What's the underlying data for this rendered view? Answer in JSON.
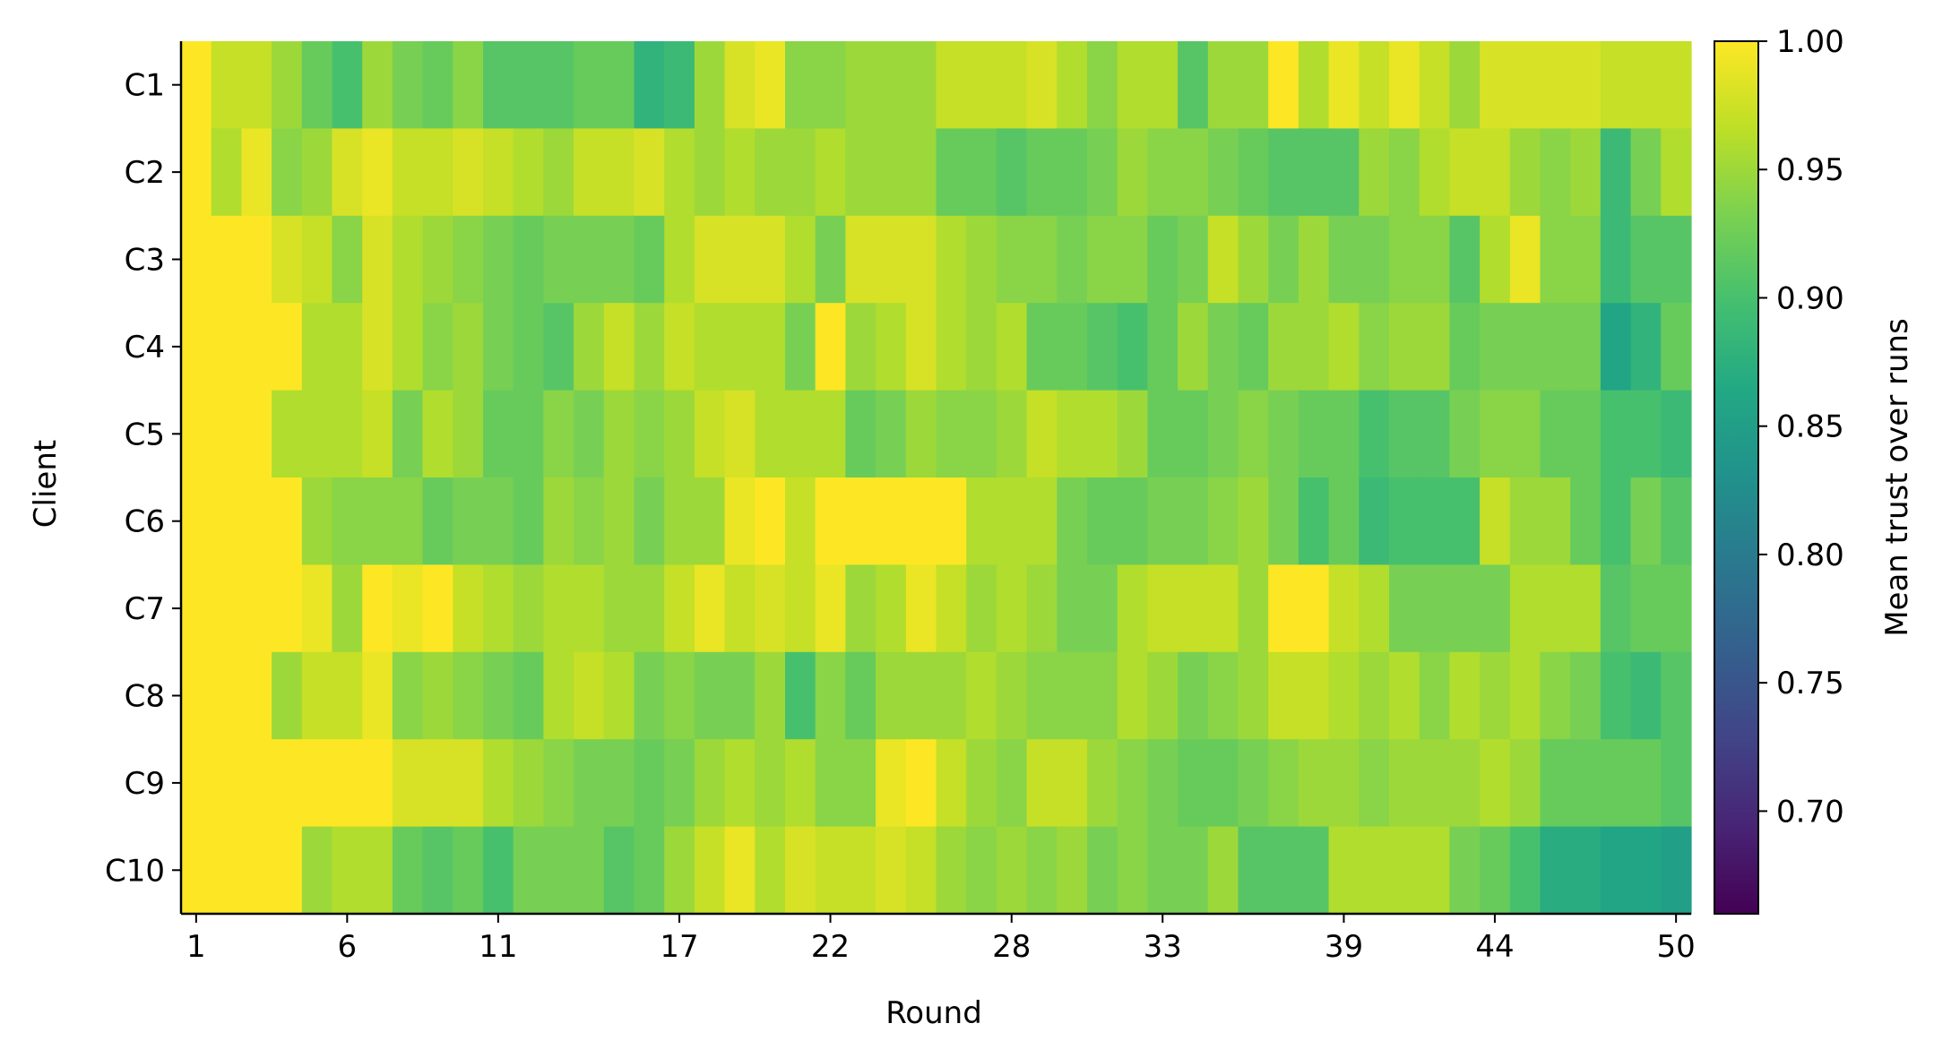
{
  "chart_data": {
    "type": "heatmap",
    "title": "",
    "xlabel": "Round",
    "ylabel": "Client",
    "colorbar_label": "Mean trust over runs",
    "colormap": "viridis",
    "vmin": 0.66,
    "vmax": 1.0,
    "x_tick_labels": [
      "1",
      "6",
      "11",
      "17",
      "22",
      "28",
      "33",
      "39",
      "44",
      "50"
    ],
    "x_tick_rounds": [
      1,
      6,
      11,
      17,
      22,
      28,
      33,
      39,
      44,
      50
    ],
    "rows": [
      "C1",
      "C2",
      "C3",
      "C4",
      "C5",
      "C6",
      "C7",
      "C8",
      "C9",
      "C10"
    ],
    "colorbar_ticks": [
      "0.70",
      "0.75",
      "0.80",
      "0.85",
      "0.90",
      "0.95",
      "1.00"
    ],
    "n_rounds": 50,
    "values": [
      [
        1.0,
        0.97,
        0.97,
        0.95,
        0.92,
        0.9,
        0.95,
        0.93,
        0.92,
        0.94,
        0.91,
        0.91,
        0.91,
        0.92,
        0.92,
        0.88,
        0.89,
        0.95,
        0.98,
        0.99,
        0.94,
        0.94,
        0.95,
        0.95,
        0.95,
        0.97,
        0.97,
        0.97,
        0.98,
        0.96,
        0.94,
        0.96,
        0.96,
        0.91,
        0.95,
        0.95,
        1.0,
        0.96,
        0.99,
        0.97,
        0.99,
        0.97,
        0.95,
        0.98,
        0.98,
        0.98,
        0.98,
        0.97,
        0.97,
        0.97
      ],
      [
        1.0,
        0.96,
        0.99,
        0.94,
        0.95,
        0.98,
        0.99,
        0.97,
        0.97,
        0.98,
        0.97,
        0.96,
        0.95,
        0.97,
        0.97,
        0.98,
        0.96,
        0.95,
        0.96,
        0.95,
        0.95,
        0.96,
        0.95,
        0.95,
        0.95,
        0.92,
        0.92,
        0.91,
        0.92,
        0.92,
        0.93,
        0.95,
        0.94,
        0.94,
        0.93,
        0.92,
        0.91,
        0.91,
        0.91,
        0.95,
        0.94,
        0.96,
        0.97,
        0.97,
        0.95,
        0.94,
        0.95,
        0.89,
        0.93,
        0.96
      ],
      [
        1.0,
        1.0,
        1.0,
        0.98,
        0.97,
        0.94,
        0.98,
        0.96,
        0.95,
        0.94,
        0.93,
        0.92,
        0.93,
        0.93,
        0.93,
        0.92,
        0.96,
        0.98,
        0.98,
        0.98,
        0.96,
        0.93,
        0.98,
        0.98,
        0.98,
        0.96,
        0.95,
        0.94,
        0.94,
        0.93,
        0.94,
        0.94,
        0.92,
        0.93,
        0.97,
        0.95,
        0.93,
        0.95,
        0.93,
        0.93,
        0.94,
        0.94,
        0.91,
        0.96,
        0.99,
        0.94,
        0.94,
        0.89,
        0.91,
        0.91
      ],
      [
        1.0,
        1.0,
        1.0,
        1.0,
        0.96,
        0.96,
        0.98,
        0.96,
        0.94,
        0.95,
        0.93,
        0.92,
        0.91,
        0.95,
        0.97,
        0.95,
        0.97,
        0.96,
        0.96,
        0.96,
        0.93,
        1.0,
        0.95,
        0.96,
        0.98,
        0.96,
        0.95,
        0.96,
        0.92,
        0.92,
        0.91,
        0.9,
        0.92,
        0.95,
        0.93,
        0.92,
        0.95,
        0.95,
        0.96,
        0.94,
        0.95,
        0.95,
        0.92,
        0.93,
        0.93,
        0.93,
        0.93,
        0.86,
        0.88,
        0.92
      ],
      [
        1.0,
        1.0,
        1.0,
        0.96,
        0.96,
        0.96,
        0.97,
        0.93,
        0.96,
        0.95,
        0.92,
        0.92,
        0.94,
        0.93,
        0.95,
        0.94,
        0.95,
        0.97,
        0.98,
        0.96,
        0.96,
        0.96,
        0.92,
        0.93,
        0.95,
        0.94,
        0.94,
        0.95,
        0.97,
        0.96,
        0.96,
        0.95,
        0.92,
        0.92,
        0.93,
        0.94,
        0.93,
        0.92,
        0.92,
        0.9,
        0.91,
        0.91,
        0.93,
        0.94,
        0.94,
        0.92,
        0.92,
        0.9,
        0.9,
        0.89
      ],
      [
        1.0,
        1.0,
        1.0,
        1.0,
        0.95,
        0.94,
        0.94,
        0.94,
        0.92,
        0.93,
        0.93,
        0.92,
        0.95,
        0.94,
        0.95,
        0.93,
        0.95,
        0.95,
        0.99,
        1.0,
        0.97,
        1.0,
        1.0,
        1.0,
        1.0,
        1.0,
        0.96,
        0.96,
        0.96,
        0.93,
        0.92,
        0.92,
        0.93,
        0.93,
        0.94,
        0.95,
        0.93,
        0.9,
        0.92,
        0.89,
        0.9,
        0.9,
        0.9,
        0.97,
        0.95,
        0.95,
        0.92,
        0.9,
        0.93,
        0.91
      ],
      [
        1.0,
        1.0,
        1.0,
        1.0,
        0.99,
        0.95,
        1.0,
        0.99,
        1.0,
        0.97,
        0.96,
        0.95,
        0.96,
        0.96,
        0.95,
        0.95,
        0.97,
        0.99,
        0.97,
        0.98,
        0.97,
        0.99,
        0.95,
        0.96,
        0.99,
        0.97,
        0.95,
        0.96,
        0.95,
        0.93,
        0.93,
        0.96,
        0.97,
        0.97,
        0.97,
        0.95,
        1.0,
        1.0,
        0.97,
        0.96,
        0.93,
        0.93,
        0.93,
        0.93,
        0.96,
        0.96,
        0.96,
        0.91,
        0.92,
        0.92
      ],
      [
        1.0,
        1.0,
        1.0,
        0.95,
        0.97,
        0.97,
        0.99,
        0.94,
        0.95,
        0.94,
        0.93,
        0.92,
        0.96,
        0.97,
        0.96,
        0.93,
        0.94,
        0.93,
        0.93,
        0.95,
        0.9,
        0.94,
        0.92,
        0.95,
        0.95,
        0.95,
        0.96,
        0.95,
        0.94,
        0.94,
        0.94,
        0.96,
        0.95,
        0.93,
        0.94,
        0.95,
        0.97,
        0.97,
        0.96,
        0.95,
        0.96,
        0.94,
        0.96,
        0.95,
        0.96,
        0.94,
        0.93,
        0.9,
        0.89,
        0.91
      ],
      [
        1.0,
        1.0,
        1.0,
        1.0,
        1.0,
        1.0,
        1.0,
        0.98,
        0.98,
        0.98,
        0.96,
        0.95,
        0.94,
        0.93,
        0.93,
        0.92,
        0.93,
        0.95,
        0.96,
        0.95,
        0.96,
        0.94,
        0.94,
        0.99,
        1.0,
        0.97,
        0.95,
        0.94,
        0.97,
        0.97,
        0.95,
        0.94,
        0.93,
        0.92,
        0.92,
        0.93,
        0.94,
        0.95,
        0.95,
        0.94,
        0.95,
        0.95,
        0.95,
        0.96,
        0.95,
        0.92,
        0.92,
        0.92,
        0.92,
        0.91
      ],
      [
        1.0,
        1.0,
        1.0,
        1.0,
        0.95,
        0.96,
        0.96,
        0.92,
        0.91,
        0.92,
        0.9,
        0.93,
        0.93,
        0.93,
        0.91,
        0.92,
        0.95,
        0.97,
        0.99,
        0.96,
        0.98,
        0.97,
        0.97,
        0.98,
        0.97,
        0.95,
        0.94,
        0.95,
        0.94,
        0.95,
        0.93,
        0.94,
        0.93,
        0.93,
        0.95,
        0.91,
        0.91,
        0.91,
        0.96,
        0.96,
        0.96,
        0.96,
        0.93,
        0.92,
        0.9,
        0.87,
        0.87,
        0.86,
        0.86,
        0.85
      ]
    ]
  }
}
